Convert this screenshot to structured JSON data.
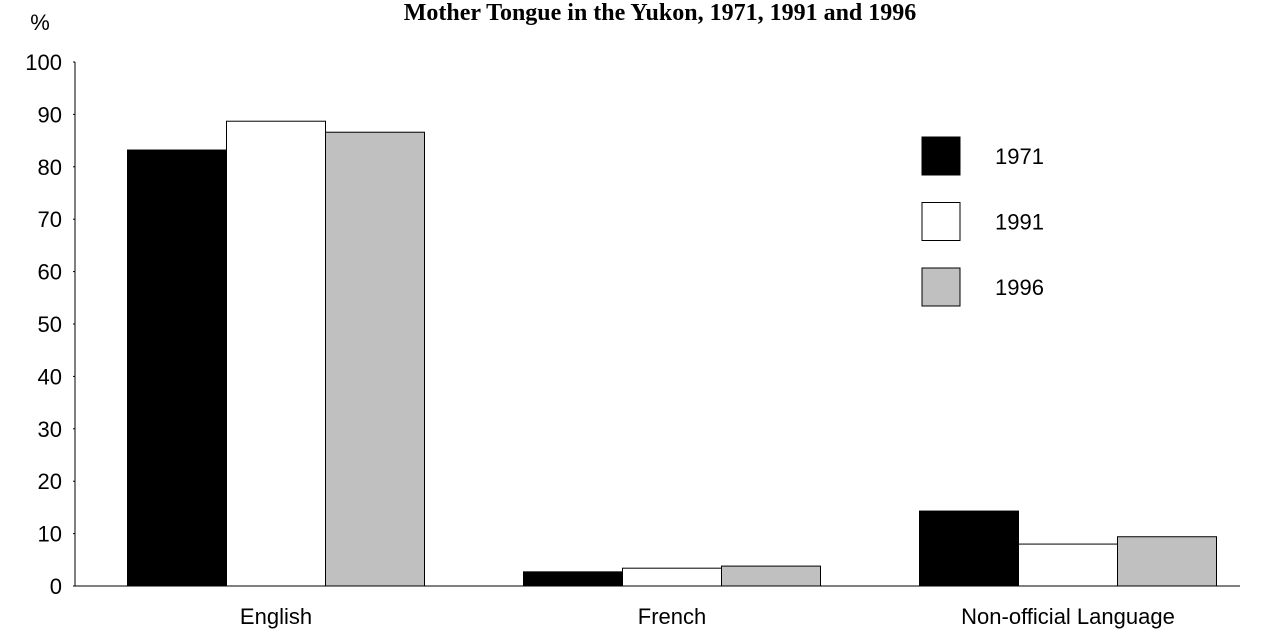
{
  "chart_data": {
    "type": "bar",
    "title": "Mother Tongue in the Yukon, 1971, 1991 and 1996",
    "y_label": "%",
    "categories": [
      "English",
      "French",
      "Non-official Language"
    ],
    "series": [
      {
        "name": "1971",
        "color": "#000000",
        "values": [
          83.2,
          2.7,
          14.3
        ]
      },
      {
        "name": "1991",
        "color": "#ffffff",
        "values": [
          88.7,
          3.4,
          8.0
        ]
      },
      {
        "name": "1996",
        "color": "#c0c0c0",
        "values": [
          86.6,
          3.8,
          9.4
        ]
      }
    ],
    "ylim": [
      0,
      100
    ],
    "yticks": [
      0,
      10,
      20,
      30,
      40,
      50,
      60,
      70,
      80,
      90,
      100
    ],
    "legend": "right"
  }
}
